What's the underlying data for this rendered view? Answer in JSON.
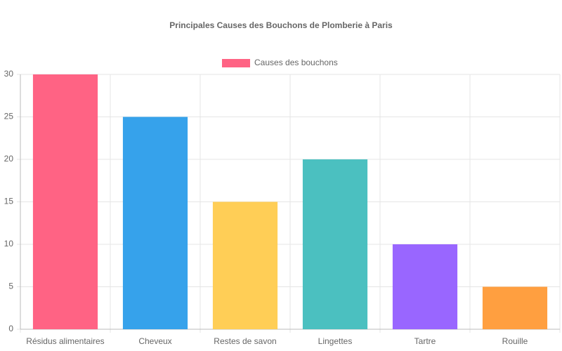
{
  "chart_data": {
    "type": "bar",
    "title": "Principales Causes des Bouchons de Plomberie à Paris",
    "categories": [
      "Résidus alimentaires",
      "Cheveux",
      "Restes de savon",
      "Lingettes",
      "Tartre",
      "Rouille"
    ],
    "series": [
      {
        "name": "Causes des bouchons",
        "color": "#ff6384",
        "colors": [
          "#ff6384",
          "#36a2eb",
          "#ffce56",
          "#4bc0c0",
          "#9966ff",
          "#ff9f40"
        ],
        "values": [
          30,
          25,
          15,
          20,
          10,
          5
        ]
      }
    ],
    "ylim": [
      0,
      30
    ],
    "yticks": [
      0,
      5,
      10,
      15,
      20,
      25,
      30
    ],
    "grid": true
  }
}
